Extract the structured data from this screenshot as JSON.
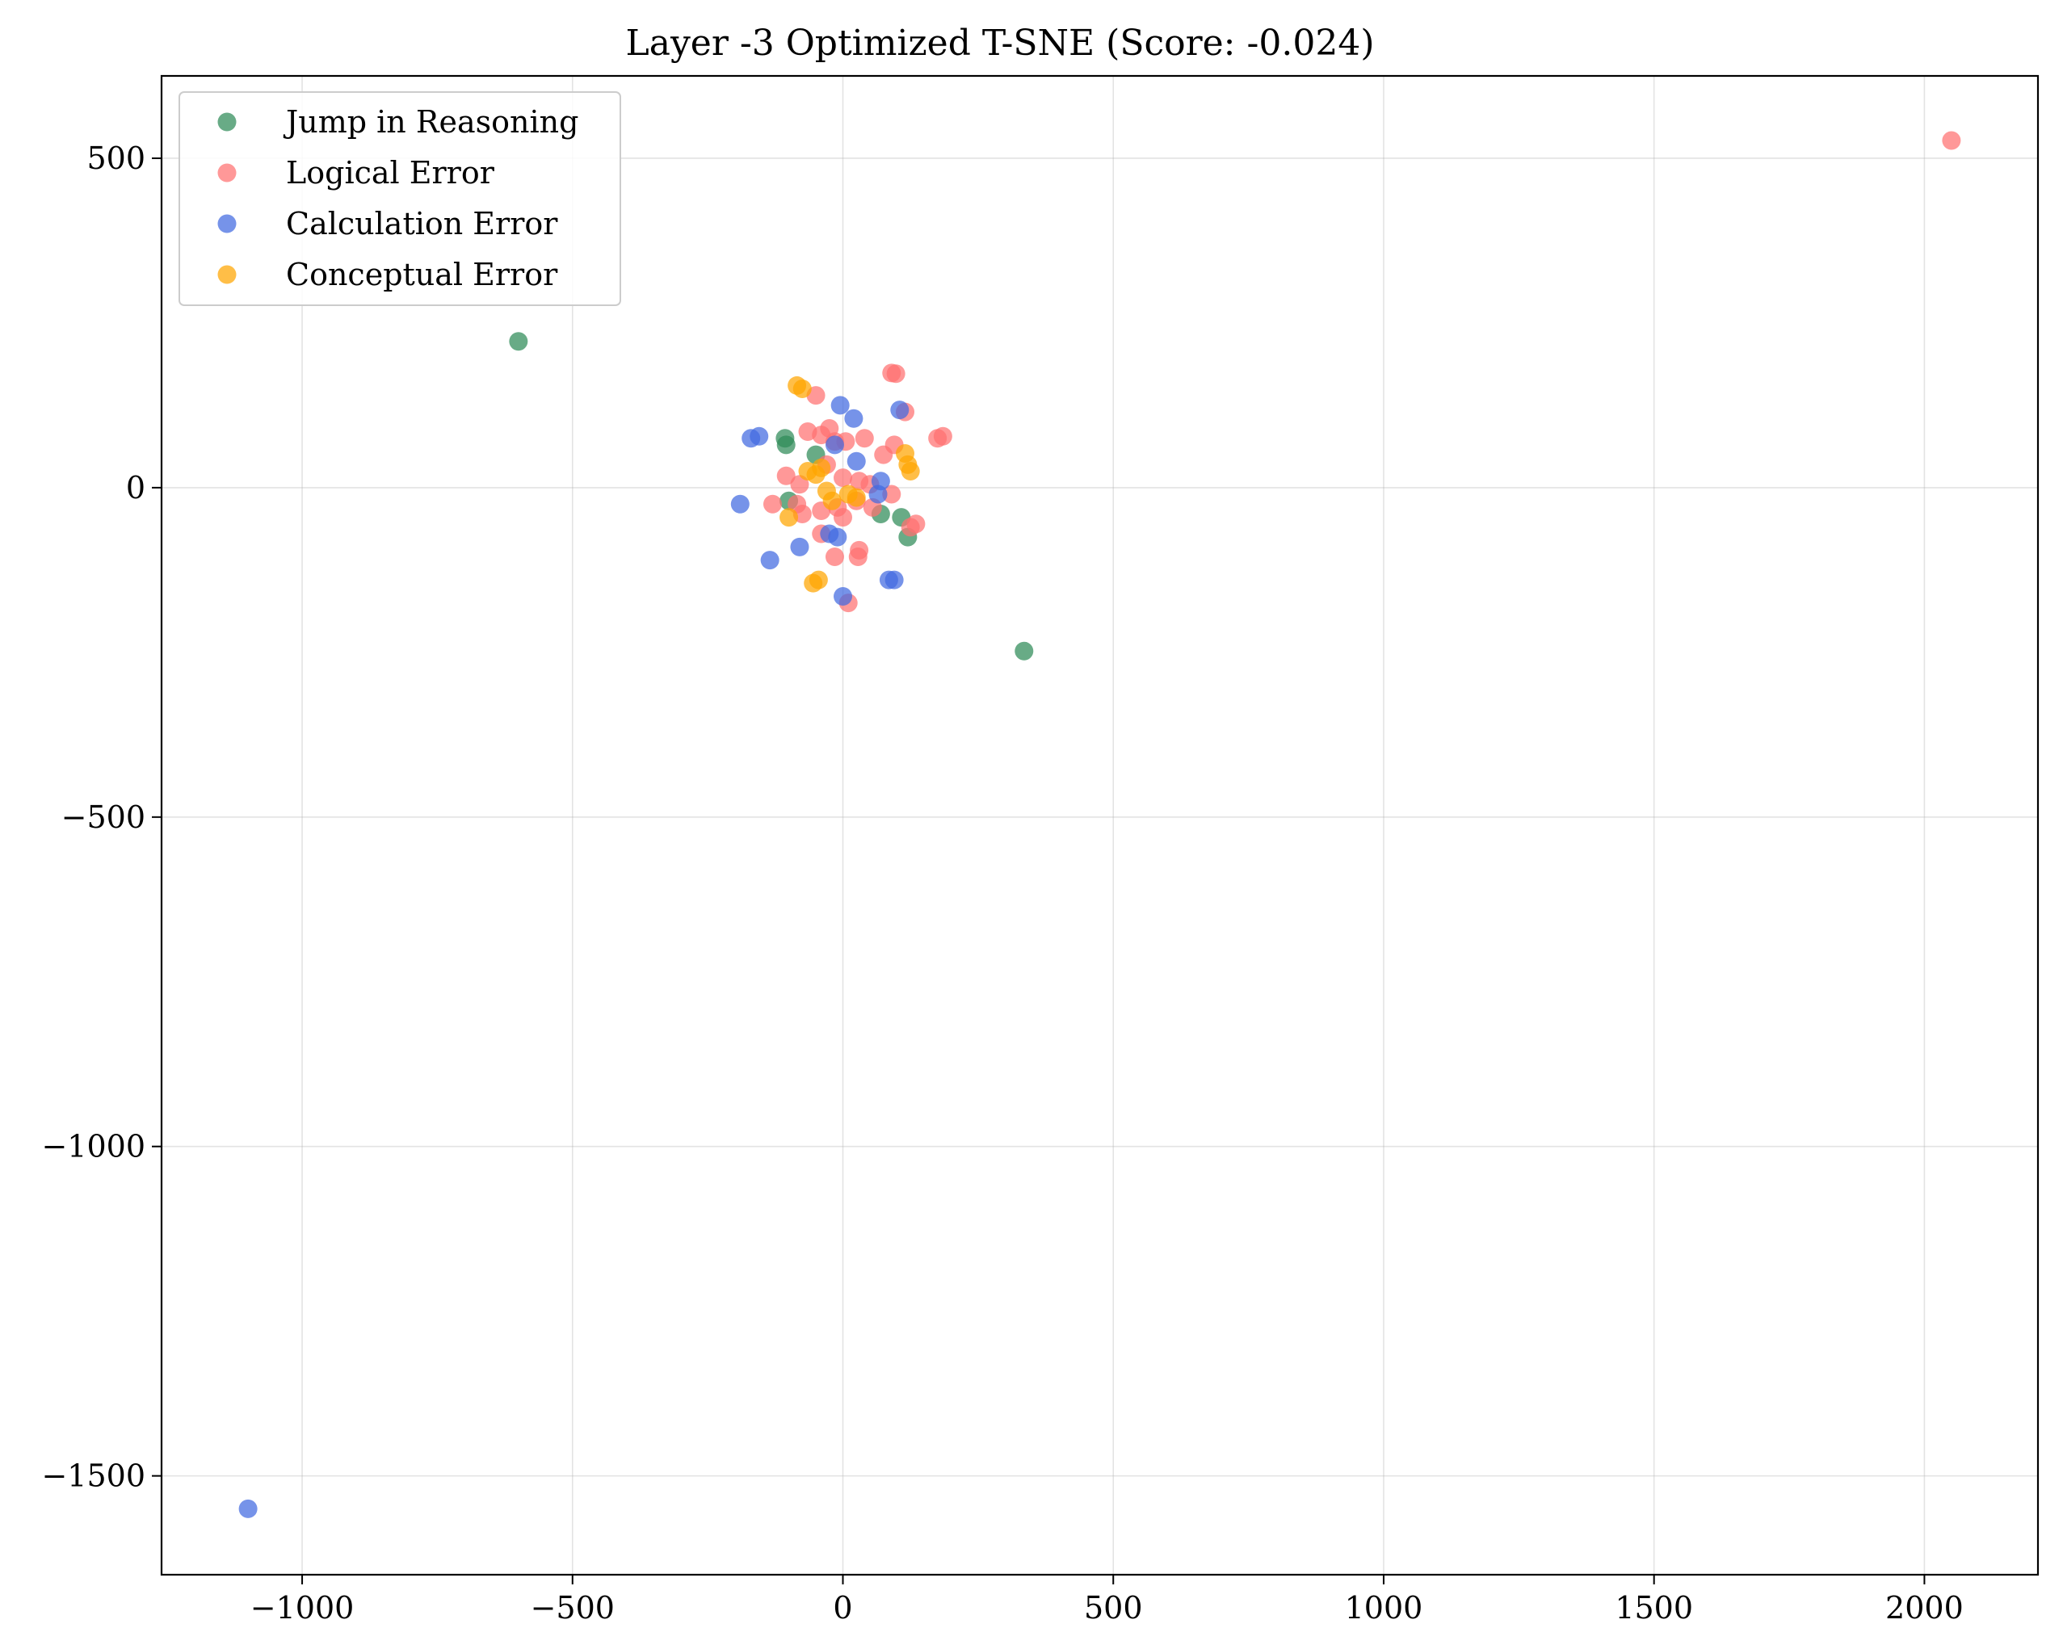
{
  "chart_data": {
    "type": "scatter",
    "title": "Layer -3 Optimized T-SNE (Score: -0.024)",
    "xlabel": "",
    "ylabel": "",
    "xlim": [
      -1260,
      2210
    ],
    "ylim": [
      -1650,
      625
    ],
    "xticks": [
      -1000,
      -500,
      0,
      500,
      1000,
      1500,
      2000
    ],
    "xtick_labels": [
      "−1000",
      "−500",
      "0",
      "500",
      "1000",
      "1500",
      "2000"
    ],
    "yticks": [
      500,
      0,
      -500,
      -1000,
      -1500
    ],
    "ytick_labels": [
      "500",
      "0",
      "−500",
      "−1000",
      "−1500"
    ],
    "grid": true,
    "legend_position": "top-left",
    "series": [
      {
        "name": "Jump in Reasoning",
        "color": "#2e8b57",
        "points": [
          [
            -600,
            222
          ],
          [
            335,
            -248
          ],
          [
            -107,
            75
          ],
          [
            -105,
            65
          ],
          [
            -50,
            50
          ],
          [
            -100,
            -20
          ],
          [
            70,
            -40
          ],
          [
            108,
            -45
          ],
          [
            120,
            -75
          ]
        ]
      },
      {
        "name": "Logical Error",
        "color": "#ff7070",
        "points": [
          [
            2050,
            527
          ],
          [
            90,
            174
          ],
          [
            98,
            173
          ],
          [
            -50,
            140
          ],
          [
            115,
            115
          ],
          [
            -65,
            85
          ],
          [
            -40,
            80
          ],
          [
            -25,
            90
          ],
          [
            -15,
            70
          ],
          [
            5,
            70
          ],
          [
            40,
            75
          ],
          [
            95,
            65
          ],
          [
            175,
            75
          ],
          [
            185,
            78
          ],
          [
            75,
            50
          ],
          [
            -105,
            18
          ],
          [
            -80,
            5
          ],
          [
            -30,
            35
          ],
          [
            0,
            15
          ],
          [
            30,
            10
          ],
          [
            50,
            5
          ],
          [
            90,
            -10
          ],
          [
            -130,
            -25
          ],
          [
            -85,
            -25
          ],
          [
            -75,
            -40
          ],
          [
            -40,
            -35
          ],
          [
            -10,
            -30
          ],
          [
            25,
            -20
          ],
          [
            55,
            -30
          ],
          [
            0,
            -45
          ],
          [
            -40,
            -70
          ],
          [
            125,
            -60
          ],
          [
            135,
            -55
          ],
          [
            30,
            -95
          ],
          [
            28,
            -105
          ],
          [
            -15,
            -105
          ],
          [
            10,
            -175
          ]
        ]
      },
      {
        "name": "Calculation Error",
        "color": "#4169e1",
        "points": [
          [
            -1100,
            -1550
          ],
          [
            -5,
            125
          ],
          [
            20,
            105
          ],
          [
            105,
            118
          ],
          [
            -170,
            75
          ],
          [
            -155,
            78
          ],
          [
            -15,
            65
          ],
          [
            25,
            40
          ],
          [
            70,
            10
          ],
          [
            65,
            -10
          ],
          [
            -190,
            -25
          ],
          [
            -80,
            -90
          ],
          [
            -135,
            -110
          ],
          [
            -25,
            -70
          ],
          [
            -10,
            -75
          ],
          [
            0,
            -165
          ],
          [
            85,
            -140
          ],
          [
            95,
            -140
          ]
        ]
      },
      {
        "name": "Conceptual Error",
        "color": "#ffa500",
        "points": [
          [
            -85,
            155
          ],
          [
            -75,
            150
          ],
          [
            115,
            52
          ],
          [
            120,
            35
          ],
          [
            125,
            25
          ],
          [
            -65,
            25
          ],
          [
            -50,
            20
          ],
          [
            -40,
            30
          ],
          [
            -30,
            -5
          ],
          [
            -20,
            -20
          ],
          [
            10,
            -10
          ],
          [
            25,
            -15
          ],
          [
            -100,
            -45
          ],
          [
            -45,
            -140
          ],
          [
            -55,
            -145
          ]
        ]
      }
    ]
  }
}
